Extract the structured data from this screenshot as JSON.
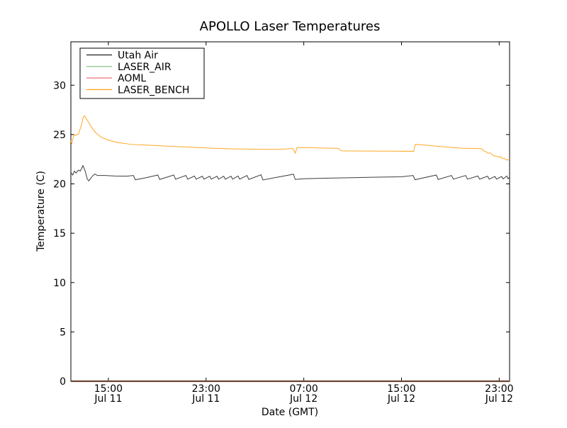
{
  "figure": {
    "background": "#ffffff",
    "border_color": "#000000"
  },
  "chart_data": {
    "type": "line",
    "title": "APOLLO Laser Temperatures",
    "xlabel": "Date (GMT)",
    "ylabel": "Temperature (C)",
    "x_unit_note": "hours since Jul 11 00:00 GMT",
    "xlim": [
      11.93,
      47.85
    ],
    "ylim": [
      0,
      34.4
    ],
    "grid": false,
    "tick_direction": "in",
    "y_ticks": [
      0,
      5,
      10,
      15,
      20,
      25,
      30
    ],
    "x_ticks": [
      {
        "hour": 15,
        "time": "15:00",
        "date": "Jul 11"
      },
      {
        "hour": 23,
        "time": "23:00",
        "date": "Jul 11"
      },
      {
        "hour": 31,
        "time": "07:00",
        "date": "Jul 12"
      },
      {
        "hour": 39,
        "time": "15:00",
        "date": "Jul 12"
      },
      {
        "hour": 47,
        "time": "23:00",
        "date": "Jul 12"
      }
    ],
    "legend": {
      "position": "upper left"
    },
    "bottom_spine_blend_color": "#6b4433",
    "series": [
      {
        "name": "LASER_AIR",
        "color": "#8fc98f",
        "points": [
          [
            11.93,
            0
          ],
          [
            47.85,
            0
          ]
        ]
      },
      {
        "name": "AOML",
        "color": "#f08080",
        "points": [
          [
            11.93,
            0
          ],
          [
            47.85,
            0
          ]
        ]
      },
      {
        "name": "Utah Air",
        "color": "#3d3d3d",
        "points": [
          [
            11.93,
            21.15
          ],
          [
            12.08,
            20.9
          ],
          [
            12.22,
            21.3
          ],
          [
            12.35,
            21.1
          ],
          [
            12.55,
            21.4
          ],
          [
            12.7,
            21.3
          ],
          [
            12.92,
            21.85
          ],
          [
            13.1,
            21.3
          ],
          [
            13.27,
            20.5
          ],
          [
            13.4,
            20.3
          ],
          [
            13.7,
            20.8
          ],
          [
            13.9,
            21.0
          ],
          [
            14.1,
            20.85
          ],
          [
            14.7,
            20.85
          ],
          [
            15.5,
            20.8
          ],
          [
            16.5,
            20.78
          ],
          [
            17.05,
            20.85
          ],
          [
            17.2,
            20.42
          ],
          [
            18.0,
            20.6
          ],
          [
            19.05,
            20.9
          ],
          [
            19.2,
            20.45
          ],
          [
            20.35,
            20.9
          ],
          [
            20.5,
            20.48
          ],
          [
            21.35,
            20.85
          ],
          [
            21.5,
            20.48
          ],
          [
            22.05,
            20.8
          ],
          [
            22.18,
            20.48
          ],
          [
            22.7,
            20.78
          ],
          [
            22.82,
            20.48
          ],
          [
            23.3,
            20.78
          ],
          [
            23.42,
            20.48
          ],
          [
            23.9,
            20.78
          ],
          [
            24.02,
            20.48
          ],
          [
            24.45,
            20.78
          ],
          [
            24.57,
            20.48
          ],
          [
            25.05,
            20.78
          ],
          [
            25.17,
            20.48
          ],
          [
            25.62,
            20.8
          ],
          [
            25.75,
            20.48
          ],
          [
            26.35,
            20.85
          ],
          [
            26.5,
            20.45
          ],
          [
            27.5,
            20.92
          ],
          [
            27.65,
            20.4
          ],
          [
            30.15,
            20.98
          ],
          [
            30.3,
            20.45
          ],
          [
            31.0,
            20.52
          ],
          [
            33.0,
            20.58
          ],
          [
            35.0,
            20.63
          ],
          [
            37.0,
            20.68
          ],
          [
            39.0,
            20.72
          ],
          [
            39.95,
            20.85
          ],
          [
            40.1,
            20.42
          ],
          [
            41.85,
            20.9
          ],
          [
            42.0,
            20.45
          ],
          [
            43.1,
            20.85
          ],
          [
            43.25,
            20.48
          ],
          [
            44.25,
            20.85
          ],
          [
            44.4,
            20.48
          ],
          [
            45.25,
            20.8
          ],
          [
            45.4,
            20.48
          ],
          [
            46.05,
            20.78
          ],
          [
            46.18,
            20.48
          ],
          [
            46.65,
            20.75
          ],
          [
            46.78,
            20.48
          ],
          [
            47.2,
            20.75
          ],
          [
            47.32,
            20.5
          ],
          [
            47.62,
            20.8
          ],
          [
            47.72,
            20.52
          ],
          [
            47.85,
            20.7
          ]
        ]
      },
      {
        "name": "LASER_BENCH",
        "color": "#ffa726",
        "points": [
          [
            11.93,
            24.35
          ],
          [
            12.0,
            24.1
          ],
          [
            12.2,
            25.0
          ],
          [
            12.3,
            24.9
          ],
          [
            12.45,
            25.0
          ],
          [
            12.55,
            25.05
          ],
          [
            12.62,
            25.3
          ],
          [
            12.8,
            26.0
          ],
          [
            12.95,
            26.8
          ],
          [
            13.05,
            26.9
          ],
          [
            13.2,
            26.6
          ],
          [
            13.45,
            26.1
          ],
          [
            13.7,
            25.6
          ],
          [
            13.95,
            25.2
          ],
          [
            14.4,
            24.75
          ],
          [
            14.85,
            24.5
          ],
          [
            15.7,
            24.2
          ],
          [
            16.9,
            24.0
          ],
          [
            18.3,
            23.92
          ],
          [
            20.0,
            23.82
          ],
          [
            21.8,
            23.72
          ],
          [
            23.5,
            23.62
          ],
          [
            25.3,
            23.55
          ],
          [
            27.6,
            23.5
          ],
          [
            29.0,
            23.5
          ],
          [
            30.1,
            23.58
          ],
          [
            30.3,
            23.12
          ],
          [
            30.45,
            23.68
          ],
          [
            31.5,
            23.66
          ],
          [
            33.0,
            23.62
          ],
          [
            33.8,
            23.6
          ],
          [
            33.95,
            23.47
          ],
          [
            34.1,
            23.35
          ],
          [
            36.0,
            23.33
          ],
          [
            38.0,
            23.32
          ],
          [
            40.0,
            23.3
          ],
          [
            40.12,
            24.0
          ],
          [
            41.0,
            23.92
          ],
          [
            42.1,
            23.8
          ],
          [
            43.9,
            23.62
          ],
          [
            45.3,
            23.58
          ],
          [
            45.6,
            23.56
          ],
          [
            45.75,
            23.3
          ],
          [
            45.9,
            23.28
          ],
          [
            46.1,
            23.1
          ],
          [
            46.25,
            23.15
          ],
          [
            46.5,
            22.88
          ],
          [
            46.7,
            22.82
          ],
          [
            46.95,
            22.72
          ],
          [
            47.1,
            22.76
          ],
          [
            47.25,
            22.58
          ],
          [
            47.4,
            22.62
          ],
          [
            47.55,
            22.45
          ],
          [
            47.7,
            22.42
          ],
          [
            47.85,
            22.55
          ]
        ]
      }
    ]
  }
}
